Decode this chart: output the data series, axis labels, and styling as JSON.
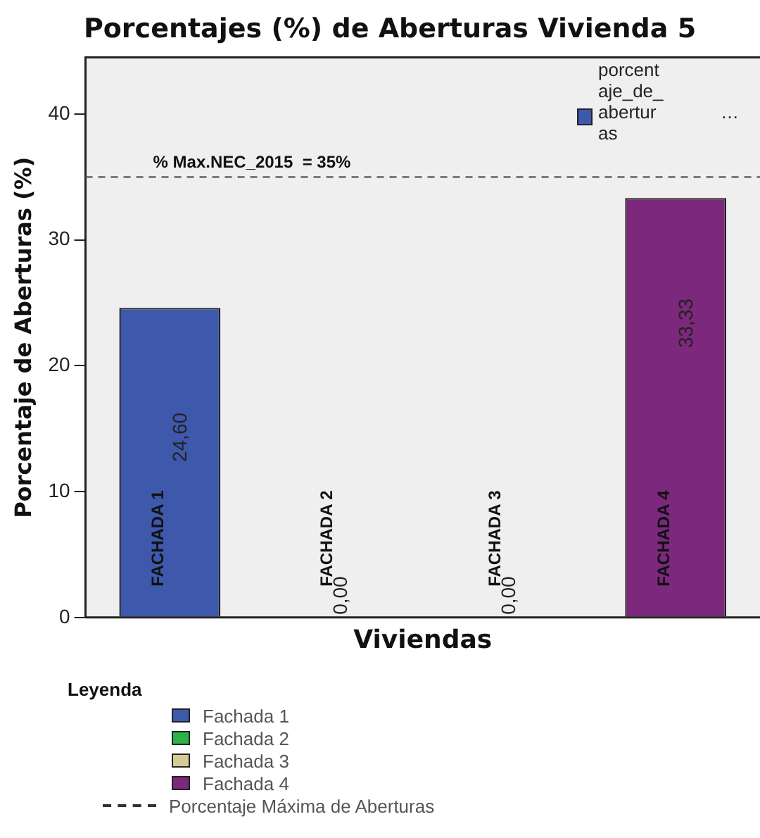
{
  "chart_data": {
    "type": "bar",
    "title": "Porcentajes (%) de Aberturas Vivienda 5",
    "xlabel": "Viviendas",
    "ylabel": "Porcentaje de Aberturas (%)",
    "legend_title": "Leyenda",
    "categories": [
      "FACHADA 1",
      "FACHADA 2",
      "FACHADA 3",
      "FACHADA 4"
    ],
    "series": [
      {
        "name": "Fachada 1",
        "color": "#3e58ac",
        "values": [
          24.6,
          null,
          null,
          null
        ],
        "value_labels": [
          "24,60",
          null,
          null,
          null
        ]
      },
      {
        "name": "Fachada 2",
        "color": "#2db34a",
        "values": [
          null,
          0,
          null,
          null
        ],
        "value_labels": [
          null,
          "0,00",
          null,
          null
        ]
      },
      {
        "name": "Fachada 3",
        "color": "#d4cc94",
        "values": [
          null,
          null,
          0,
          null
        ],
        "value_labels": [
          null,
          null,
          "0,00",
          null
        ]
      },
      {
        "name": "Fachada 4",
        "color": "#7c287c",
        "values": [
          null,
          null,
          null,
          33.33
        ],
        "value_labels": [
          null,
          null,
          null,
          "33,33"
        ]
      }
    ],
    "ylim": [
      0,
      44.5
    ],
    "yticks": [
      0,
      10,
      20,
      30,
      40
    ],
    "grid": false,
    "legend": "bottom",
    "ref_lines": [
      {
        "axis": "y",
        "value": 35,
        "label": "% Max.NEC_2015  = 35%",
        "line_style": "dashed",
        "color": "#555555"
      }
    ],
    "annotations": [
      "Porcentaje Máxima de Aberturas",
      "porcentaje_de_aberturas",
      "…"
    ]
  }
}
